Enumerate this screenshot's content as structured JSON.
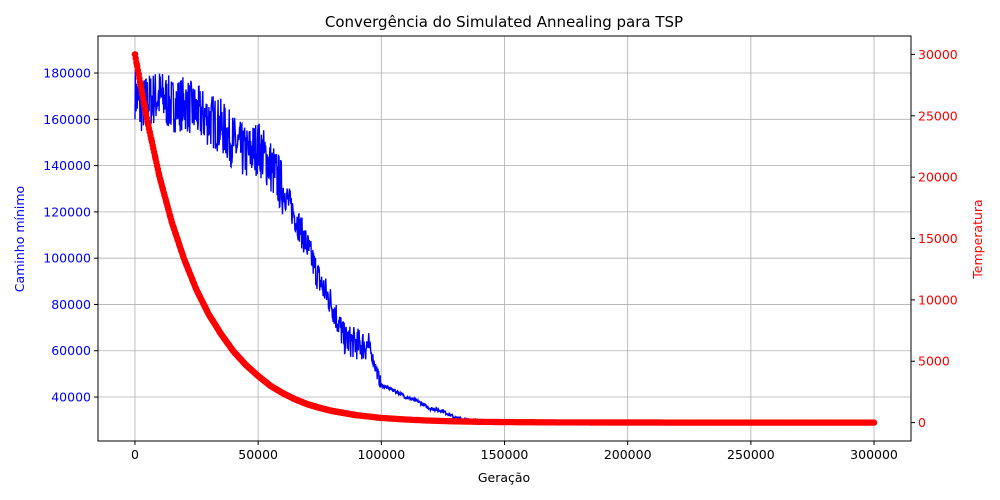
{
  "chart_data": {
    "type": "line",
    "title": "Convergência do Simulated Annealing para TSP",
    "xlabel": "Geração",
    "ylabel_left": "Caminho mínimo",
    "ylabel_right": "Temperatura",
    "xlim": [
      -15000,
      315000
    ],
    "ylim_left": [
      21000,
      196000
    ],
    "ylim_right": [
      -1500,
      31500
    ],
    "x_ticks": [
      0,
      50000,
      100000,
      150000,
      200000,
      250000,
      300000
    ],
    "x_tick_labels": [
      "0",
      "50000",
      "100000",
      "150000",
      "200000",
      "250000",
      "300000"
    ],
    "y_left_ticks": [
      40000,
      60000,
      80000,
      100000,
      120000,
      140000,
      160000,
      180000
    ],
    "y_left_tick_labels": [
      "40000",
      "60000",
      "80000",
      "100000",
      "120000",
      "140000",
      "160000",
      "180000"
    ],
    "y_right_ticks": [
      0,
      5000,
      10000,
      15000,
      20000,
      25000,
      30000
    ],
    "y_right_tick_labels": [
      "0",
      "5000",
      "10000",
      "15000",
      "20000",
      "25000",
      "30000"
    ],
    "grid": true,
    "colors": {
      "left": "#0000ff",
      "right": "#ff0000",
      "grid": "#b0b0b0",
      "text": "#000000"
    },
    "series": [
      {
        "axis": "left",
        "color": "#0000ff",
        "style": "line",
        "x": [
          0,
          2000,
          5000,
          10000,
          15000,
          20000,
          25000,
          30000,
          35000,
          40000,
          45000,
          50000,
          55000,
          60000,
          65000,
          70000,
          75000,
          80000,
          85000,
          90000,
          95000,
          97000,
          100000,
          105000,
          110000,
          115000,
          120000,
          125000,
          130000,
          135000,
          140000
        ],
        "y": [
          172000,
          165000,
          168000,
          170000,
          166000,
          167000,
          163000,
          160000,
          157000,
          150000,
          145000,
          148000,
          140000,
          130000,
          118000,
          105000,
          90000,
          80000,
          65000,
          63000,
          62000,
          55000,
          45000,
          43000,
          40000,
          38000,
          35000,
          34000,
          31000,
          30000,
          29500
        ]
      },
      {
        "axis": "right",
        "color": "#ff0000",
        "style": "markers",
        "x": [
          0,
          5000,
          10000,
          15000,
          20000,
          25000,
          30000,
          35000,
          40000,
          45000,
          50000,
          55000,
          60000,
          65000,
          70000,
          75000,
          80000,
          90000,
          100000,
          110000,
          120000,
          130000,
          140000,
          150000,
          175000,
          200000,
          225000,
          250000,
          275000,
          300000
        ],
        "y": [
          30000,
          24600,
          20000,
          16300,
          13300,
          10800,
          8800,
          7200,
          5800,
          4700,
          3800,
          3000,
          2400,
          1900,
          1500,
          1200,
          950,
          600,
          380,
          250,
          160,
          100,
          65,
          40,
          15,
          5,
          2,
          1,
          0,
          0
        ]
      }
    ]
  }
}
